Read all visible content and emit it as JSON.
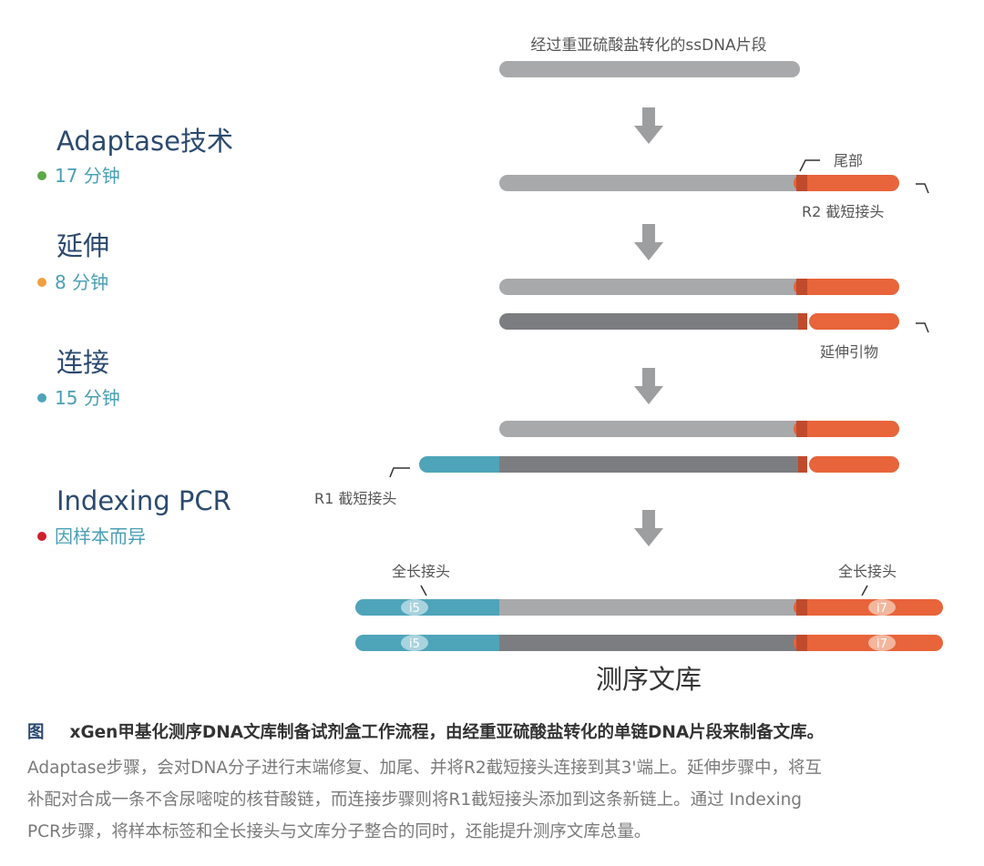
{
  "colors": {
    "navy": "#2b4a6f",
    "teal_text": "#4a9fb5",
    "light_gray_strand": "#a8a9ab",
    "dark_gray_strand": "#7c7d80",
    "orange": "#e8643a",
    "dark_orange": "#c04a2c",
    "teal_strand": "#4ea4b9",
    "arrow": "#9d9ea0"
  },
  "steps": [
    {
      "title": "Adaptase技术",
      "time": "17 分钟",
      "dot_color": "#5aaa45"
    },
    {
      "title": "延伸",
      "time": "8 分钟",
      "dot_color": "#f0a040"
    },
    {
      "title": "连接",
      "time": "15 分钟",
      "dot_color": "#4ea4b9"
    },
    {
      "title": "Indexing PCR",
      "time": "因样本而异",
      "dot_color": "#d0202a"
    }
  ],
  "labels": {
    "input": "经过重亚硫酸盐转化的ssDNA片段",
    "tail": "尾部",
    "r2": "R2 截短接头",
    "ext_primer": "延伸引物",
    "r1": "R1 截短接头",
    "full_adapter_left": "全长接头",
    "full_adapter_right": "全长接头",
    "i5": "i5",
    "i7": "i7",
    "library": "测序文库"
  },
  "caption": {
    "fig_label": "图",
    "title": "xGen甲基化测序DNA文库制备试剂盒工作流程，由经重亚硫酸盐转化的单链DNA片段来制备文库。",
    "body_lines": [
      "Adaptase步骤，会对DNA分子进行末端修复、加尾、并将R2截短接头连接到其3'端上。延伸步骤中，将互",
      "补配对合成一条不含尿嘧啶的核苷酸链，而连接步骤则将R1截短接头添加到这条新链上。通过 Indexing",
      "PCR步骤，将样本标签和全长接头与文库分子整合的同时，还能提升测序文库总量。"
    ]
  }
}
